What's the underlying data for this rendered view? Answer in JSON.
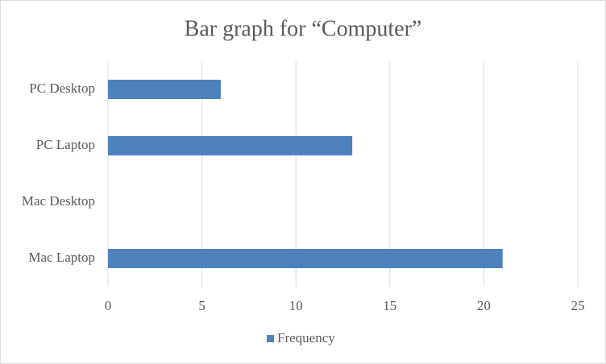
{
  "chart_data": {
    "type": "bar",
    "orientation": "horizontal",
    "title": "Bar graph for “Computer”",
    "categories": [
      "PC Desktop",
      "PC Laptop",
      "Mac Desktop",
      "Mac Laptop"
    ],
    "series": [
      {
        "name": "Frequency",
        "color": "#4f81bd",
        "values": [
          6,
          13,
          0,
          21
        ]
      }
    ],
    "xlim": [
      0,
      25
    ],
    "xticks": [
      0,
      5,
      10,
      15,
      20,
      25
    ],
    "grid": true,
    "legend": "bottom"
  }
}
